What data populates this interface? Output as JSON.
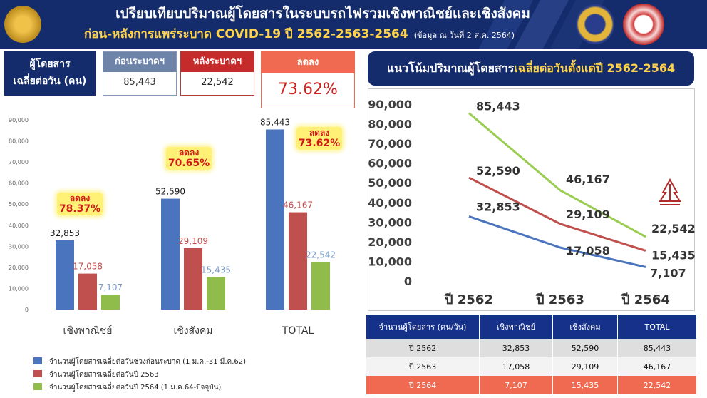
{
  "header": {
    "title_line1": "เปรียบเทียบปริมาณผู้โดยสารในระบบรถไฟรวมเชิงพาณิชย์และเชิงสังคม",
    "title_line2": "ก่อน-หลังการแพร่ระบาด  COVID-19  ปี 2562-2563-2564",
    "note": "(ข้อมูล ณ วันที่ 2 ส.ค. 2564)",
    "colors": {
      "background": "#142c6c",
      "title": "#ffffff",
      "subtitle": "#ffd24a"
    }
  },
  "summary": {
    "label_line1": "ผู้โดยสาร",
    "label_line2": "เฉลี่ยต่อวัน (คน)",
    "before_label": "ก่อนระบาดฯ",
    "before_value": "85,443",
    "after_label": "หลังระบาดฯ",
    "after_value": "22,542",
    "decrease_label": "ลดลง",
    "decrease_value": "73.62%"
  },
  "trend_title": {
    "prefix": "แนวโน้มปริมาณผู้โดยสาร",
    "highlight": "เฉลี่ยต่อวันตั้งแต่ปี 2562-2564"
  },
  "chart_data": [
    {
      "type": "bar",
      "categories": [
        "เชิงพาณิชย์",
        "เชิงสังคม",
        "TOTAL"
      ],
      "series": [
        {
          "name": "จำนวนผู้โดยสารเฉลี่ยต่อวันช่วงก่อนระบาด (1 ม.ค.-31 มี.ค.62)",
          "values": [
            32853,
            52590,
            85443
          ],
          "color": "#4a74bd",
          "label_color": "#1a1a1a"
        },
        {
          "name": "จำนวนผู้โดยสารเฉลี่ยต่อวันปี 2563",
          "values": [
            17058,
            29109,
            46167
          ],
          "color": "#c0504d",
          "label_color": "#c0504d"
        },
        {
          "name": "จำนวนผู้โดยสารเฉลี่ยต่อวันปี 2564 (1 ม.ค.64-ปัจจุบัน)",
          "values": [
            7107,
            15435,
            22542
          ],
          "color": "#8fbc4a",
          "label_color": "#7a9cc7"
        }
      ],
      "ylim": [
        0,
        90000
      ],
      "yticks": [
        "0",
        "10,000",
        "20,000",
        "30,000",
        "40,000",
        "50,000",
        "60,000",
        "70,000",
        "80,000",
        "90,000"
      ],
      "value_labels": [
        [
          "32,853",
          "52,590",
          "85,443"
        ],
        [
          "17,058",
          "29,109",
          "46,167"
        ],
        [
          "7,107",
          "15,435",
          "22,542"
        ]
      ],
      "annotations": [
        {
          "category": "เชิงพาณิชย์",
          "line1": "ลดลง",
          "line2": "78.37%"
        },
        {
          "category": "เชิงสังคม",
          "line1": "ลดลง",
          "line2": "70.65%"
        },
        {
          "category": "TOTAL",
          "line1": "ลดลง",
          "line2": "73.62%"
        }
      ],
      "grid": false,
      "legend": "bottom-left"
    },
    {
      "type": "line",
      "x": [
        "ปี 2562",
        "ปี 2563",
        "ปี 2564"
      ],
      "series": [
        {
          "values": [
            85443,
            46167,
            22542
          ],
          "color": "#9acd52"
        },
        {
          "values": [
            52590,
            29109,
            15435
          ],
          "color": "#c0504d"
        },
        {
          "values": [
            32853,
            17058,
            7107
          ],
          "color": "#4a74bd"
        }
      ],
      "point_labels": [
        [
          "85,443",
          "46,167",
          "22,542"
        ],
        [
          "52,590",
          "29,109",
          "15,435"
        ],
        [
          "32,853",
          "17,058",
          "7,107"
        ]
      ],
      "ylim": [
        0,
        90000
      ],
      "yticks": [
        "0",
        "10,000",
        "20,000",
        "30,000",
        "40,000",
        "50,000",
        "60,000",
        "70,000",
        "80,000",
        "90,000"
      ],
      "grid": false
    },
    {
      "type": "table",
      "columns": [
        "จำนวนผู้โดยสาร (คน/วัน)",
        "เชิงพาณิชย์",
        "เชิงสังคม",
        "TOTAL"
      ],
      "rows": [
        [
          "ปี 2562",
          "32,853",
          "52,590",
          "85,443"
        ],
        [
          "ปี 2563",
          "17,058",
          "29,109",
          "46,167"
        ],
        [
          "ปี 2564",
          "7,107",
          "15,435",
          "22,542"
        ]
      ]
    }
  ]
}
